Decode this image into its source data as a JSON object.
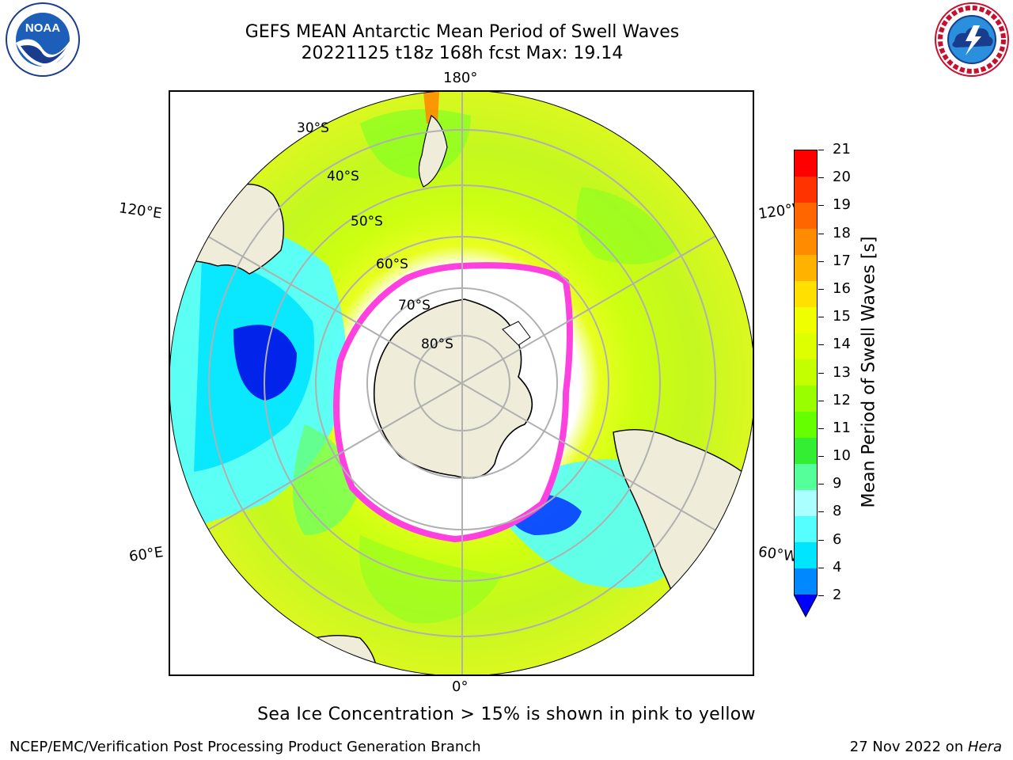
{
  "title": {
    "line1": "GEFS MEAN Antarctic Mean Period of Swell Waves",
    "line2": "20221125 t18z 168h fcst   Max: 19.14"
  },
  "logos": {
    "noaa": {
      "text": "NOAA",
      "ring": "NATIONAL OCEANIC AND ATMOSPHERIC ADMINISTRATION · U.S. DEPARTMENT OF COMMERCE"
    },
    "nws": {
      "ring": "NATIONAL WEATHER SERVICE"
    }
  },
  "map": {
    "projection": "south-polar-stereographic",
    "longitude_labels": {
      "top": "180°",
      "bottom": "0°",
      "left_upper": "120°E",
      "left_lower": "60°E",
      "right_upper": "120°W",
      "right_lower": "60°W"
    },
    "latitude_labels": [
      "30°S",
      "40°S",
      "50°S",
      "60°S",
      "70°S",
      "80°S"
    ],
    "colors": {
      "land": "#efedd9",
      "ice": "#ffffff",
      "grid": "#b0b0b0",
      "ice_edge": "#ff40e0"
    }
  },
  "colorbar": {
    "label": "Mean Period of Swell Waves [s]",
    "ticks": [
      "21",
      "20",
      "19",
      "18",
      "17",
      "16",
      "15",
      "14",
      "13",
      "12",
      "11",
      "10",
      "9",
      "8",
      "6",
      "4",
      "2"
    ],
    "colors_top_to_bottom": [
      "#ff0000",
      "#ff3300",
      "#ff6600",
      "#ff8c00",
      "#ffb300",
      "#ffe000",
      "#f0ff00",
      "#ddff00",
      "#c4ff00",
      "#99ff00",
      "#66ff00",
      "#33ee33",
      "#55ff99",
      "#aaffff",
      "#55ffff",
      "#00e5ff",
      "#0088ff"
    ],
    "extend_color": "#0000ff"
  },
  "note": "Sea Ice Concentration > 15% is shown in pink to yellow",
  "footer": {
    "left": "NCEP/EMC/Verification Post Processing Product Generation Branch",
    "right_prefix": "27 Nov 2022 on ",
    "right_machine": "Hera"
  }
}
